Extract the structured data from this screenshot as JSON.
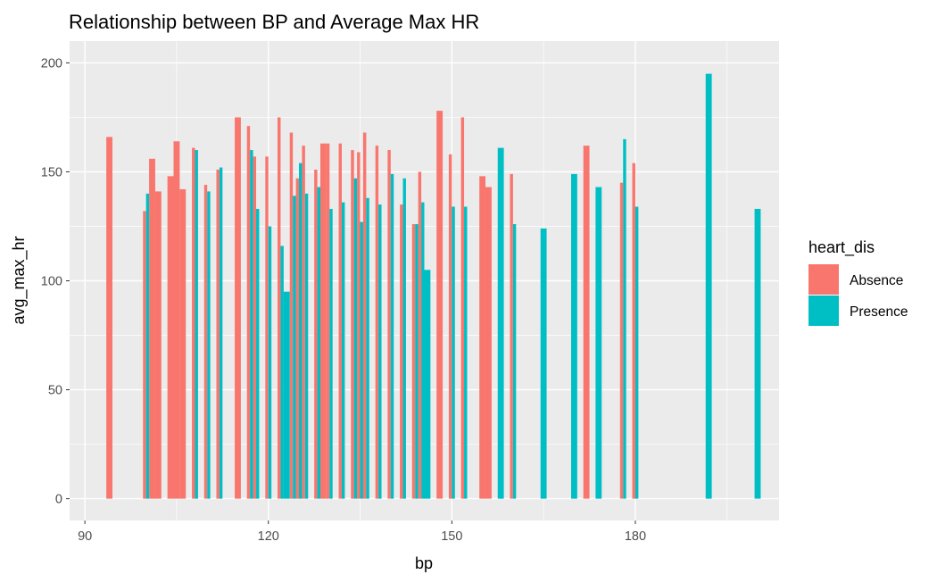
{
  "chart_data": {
    "type": "bar",
    "title": "Relationship between BP and Average Max HR",
    "xlabel": "bp",
    "ylabel": "avg_max_hr",
    "xlim": [
      87.5,
      203.5
    ],
    "ylim": [
      -10,
      210
    ],
    "x_ticks": [
      90,
      120,
      150,
      180
    ],
    "y_ticks": [
      0,
      50,
      100,
      150,
      200
    ],
    "grid": true,
    "position": "dodge",
    "bar_width": 1,
    "legend": {
      "title": "heart_dis",
      "placement": "right",
      "entries": [
        "Absence",
        "Presence"
      ]
    },
    "series": [
      {
        "name": "Absence",
        "color": "#F8766D",
        "points": [
          {
            "x": 94,
            "y": 166
          },
          {
            "x": 100,
            "y": 132
          },
          {
            "x": 101,
            "y": 156
          },
          {
            "x": 102,
            "y": 141
          },
          {
            "x": 104,
            "y": 148
          },
          {
            "x": 105,
            "y": 164
          },
          {
            "x": 106,
            "y": 142
          },
          {
            "x": 108,
            "y": 161
          },
          {
            "x": 110,
            "y": 144
          },
          {
            "x": 112,
            "y": 151
          },
          {
            "x": 115,
            "y": 175
          },
          {
            "x": 117,
            "y": 171
          },
          {
            "x": 118,
            "y": 157
          },
          {
            "x": 120,
            "y": 157
          },
          {
            "x": 122,
            "y": 175
          },
          {
            "x": 124,
            "y": 168
          },
          {
            "x": 125,
            "y": 147
          },
          {
            "x": 126,
            "y": 162
          },
          {
            "x": 128,
            "y": 151
          },
          {
            "x": 129,
            "y": 163
          },
          {
            "x": 130,
            "y": 163
          },
          {
            "x": 132,
            "y": 163
          },
          {
            "x": 134,
            "y": 160
          },
          {
            "x": 135,
            "y": 159
          },
          {
            "x": 136,
            "y": 168
          },
          {
            "x": 138,
            "y": 162
          },
          {
            "x": 140,
            "y": 160
          },
          {
            "x": 142,
            "y": 135
          },
          {
            "x": 144,
            "y": 126
          },
          {
            "x": 145,
            "y": 150
          },
          {
            "x": 148,
            "y": 178
          },
          {
            "x": 150,
            "y": 158
          },
          {
            "x": 152,
            "y": 175
          },
          {
            "x": 155,
            "y": 148
          },
          {
            "x": 156,
            "y": 143
          },
          {
            "x": 160,
            "y": 149
          },
          {
            "x": 172,
            "y": 162
          },
          {
            "x": 178,
            "y": 145
          },
          {
            "x": 180,
            "y": 154
          }
        ]
      },
      {
        "name": "Presence",
        "color": "#00BFC4",
        "points": [
          {
            "x": 100,
            "y": 140
          },
          {
            "x": 108,
            "y": 160
          },
          {
            "x": 110,
            "y": 141
          },
          {
            "x": 112,
            "y": 152
          },
          {
            "x": 117,
            "y": 160
          },
          {
            "x": 118,
            "y": 133
          },
          {
            "x": 120,
            "y": 125
          },
          {
            "x": 122,
            "y": 116
          },
          {
            "x": 123,
            "y": 95
          },
          {
            "x": 124,
            "y": 139
          },
          {
            "x": 125,
            "y": 154
          },
          {
            "x": 126,
            "y": 140
          },
          {
            "x": 128,
            "y": 143
          },
          {
            "x": 130,
            "y": 133
          },
          {
            "x": 132,
            "y": 136
          },
          {
            "x": 134,
            "y": 147
          },
          {
            "x": 135,
            "y": 127
          },
          {
            "x": 136,
            "y": 138
          },
          {
            "x": 138,
            "y": 135
          },
          {
            "x": 140,
            "y": 149
          },
          {
            "x": 142,
            "y": 147
          },
          {
            "x": 144,
            "y": 126
          },
          {
            "x": 145,
            "y": 136
          },
          {
            "x": 146,
            "y": 105
          },
          {
            "x": 150,
            "y": 134
          },
          {
            "x": 152,
            "y": 134
          },
          {
            "x": 158,
            "y": 161
          },
          {
            "x": 160,
            "y": 126
          },
          {
            "x": 165,
            "y": 124
          },
          {
            "x": 170,
            "y": 149
          },
          {
            "x": 174,
            "y": 143
          },
          {
            "x": 178,
            "y": 165
          },
          {
            "x": 180,
            "y": 134
          },
          {
            "x": 192,
            "y": 195
          },
          {
            "x": 200,
            "y": 133
          }
        ]
      }
    ]
  }
}
